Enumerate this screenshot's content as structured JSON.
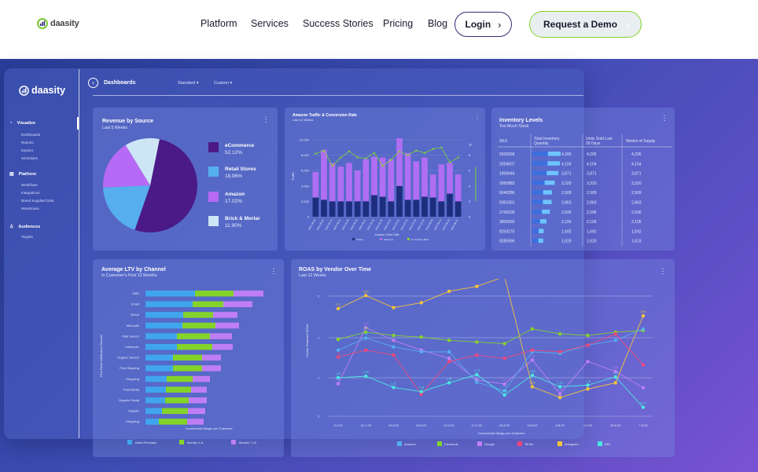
{
  "nav": {
    "logo_text": "daasity",
    "links": [
      "Platform",
      "Services",
      "Success Stories",
      "Pricing",
      "Blog"
    ],
    "login_label": "Login",
    "demo_label": "Request a Demo"
  },
  "dashboard": {
    "logo_text": "daasity",
    "title": "Dashboards",
    "dropdowns": [
      "Standard",
      "Custom"
    ],
    "sidebar": {
      "sections": [
        {
          "label": "Visualize",
          "icon": "chart-icon",
          "items": [
            "Dashboards",
            "Reports",
            "Explore",
            "Schedules"
          ]
        },
        {
          "label": "Platform",
          "icon": "grid-icon",
          "items": [
            "Workflows",
            "Integrations",
            "Brand Supplied Data",
            "Warehouse"
          ]
        },
        {
          "label": "Audiences",
          "icon": "people-icon",
          "items": [
            "Targets"
          ]
        }
      ]
    }
  },
  "revenue": {
    "title": "Revenue by Source",
    "subtitle": "Last 5 Weeks",
    "chart_data": {
      "type": "pie",
      "title": "Revenue by Source",
      "slices": [
        {
          "label": "eCommerce",
          "value": 52.12,
          "pct": "52.12%",
          "color": "#4b1a86"
        },
        {
          "label": "Retail Stores",
          "value": 18.96,
          "pct": "18.96%",
          "color": "#56aeee"
        },
        {
          "label": "Amazon",
          "value": 17.02,
          "pct": "17.02%",
          "color": "#b66af5"
        },
        {
          "label": "Brick & Mortar",
          "value": 11.9,
          "pct": "11.90%",
          "color": "#cde6f5"
        }
      ]
    }
  },
  "amazon": {
    "title": "Amazon Traffic & Conversion Rate",
    "subtitle": "Last 10 Weeks",
    "ylabel": "Traffic",
    "xlabel": "Amazon Order Date",
    "yticks": [
      "10,000",
      "8,000",
      "6,000",
      "4,000",
      "2,000",
      "0"
    ],
    "rticks": [
      "10",
      "8",
      "6",
      "4",
      "2",
      "0"
    ],
    "legend": [
      "Orders",
      "Sessions",
      "Conversion Rate"
    ],
    "colors": {
      "orders": "#1e2e7f",
      "sessions": "#b06ef3",
      "rate": "#7fd436"
    },
    "chart_data": {
      "type": "bar",
      "categories": [
        "2022-04-30",
        "2022-05-07",
        "2022-05-14",
        "2022-05-21",
        "2022-05-28",
        "2022-06-04",
        "2022-06-11",
        "2022-06-18",
        "2022-06-25",
        "2022-07-02",
        "2022-07-09",
        "2022-07-16",
        "2022-07-23",
        "2022-07-30",
        "2022-08-06",
        "2022-08-13",
        "2022-08-20",
        "2022-08-27"
      ],
      "series": [
        {
          "name": "Orders",
          "values": [
            2500,
            2200,
            2000,
            2000,
            2000,
            2000,
            2000,
            2800,
            2600,
            2000,
            4000,
            2200,
            2200,
            2600,
            2500,
            2000,
            3000,
            2000
          ]
        },
        {
          "name": "Sessions",
          "values": [
            3300,
            6500,
            5000,
            4500,
            5000,
            4000,
            5500,
            5000,
            5100,
            5500,
            6200,
            6100,
            5000,
            5100,
            3000,
            4800,
            4000,
            3500
          ]
        },
        {
          "name": "Conversion Rate",
          "values": [
            8.2,
            8.6,
            6.6,
            7.7,
            8.5,
            7.7,
            7.6,
            8.3,
            6.6,
            7.4,
            8.5,
            8.0,
            8.6,
            8.3,
            8.8,
            9.0,
            7.1,
            7.7
          ]
        }
      ],
      "ylim": [
        0,
        10000
      ]
    }
  },
  "inventory": {
    "title": "Inventory Levels",
    "subtitle": "Too Much Stock",
    "columns": [
      "SKU",
      "Total Inventory Quantity",
      "Units Sold Last 28 Days",
      "Weeks of Supply"
    ],
    "rows": [
      {
        "sku": "5930596",
        "qty": "4,205",
        "sold": "4,205",
        "weeks": "4,205",
        "v": 4205
      },
      {
        "sku": "2059607",
        "qty": "4,104",
        "sold": "4,104",
        "weeks": "4,104",
        "v": 4104
      },
      {
        "sku": "1906946",
        "qty": "3,871",
        "sold": "3,871",
        "weeks": "3,871",
        "v": 3871
      },
      {
        "sku": "2950883",
        "qty": "3,320",
        "sold": "3,320",
        "weeks": "3,320",
        "v": 3320
      },
      {
        "sku": "6040286",
        "qty": "2,909",
        "sold": "2,909",
        "weeks": "2,909",
        "v": 2909
      },
      {
        "sku": "5950301",
        "qty": "2,863",
        "sold": "2,863",
        "weeks": "2,863",
        "v": 2863
      },
      {
        "sku": "2749205",
        "qty": "2,596",
        "sold": "2,596",
        "weeks": "2,596",
        "v": 2596
      },
      {
        "sku": "3800602",
        "qty": "2,105",
        "sold": "2,105",
        "weeks": "2,105",
        "v": 2105
      },
      {
        "sku": "8259275",
        "qty": "1,692",
        "sold": "1,692",
        "weeks": "1,692",
        "v": 1692
      },
      {
        "sku": "9285996",
        "qty": "1,619",
        "sold": "1,619",
        "weeks": "1,619",
        "v": 1619
      }
    ]
  },
  "ltv": {
    "title": "Average LTV by Channel",
    "subtitle": "In Customer's First 12 Months",
    "ylabel": "First Order Attribution Channel",
    "xlabel": "Incremental Margin per Customer",
    "legend": [
      "Initial Purchase",
      "Months 1-6",
      "Months 7-12"
    ],
    "colors": [
      "#3fa6ee",
      "#84d32a",
      "#c07ef5"
    ],
    "chart_data": {
      "type": "bar",
      "categories": [
        "SMS",
        "Email",
        "Direct",
        "Microsite",
        "Paid Search",
        "Influencer",
        "Organic Search",
        "Free Shipping",
        "Shopping",
        "Paid Media",
        "Organic Social",
        "Organic",
        "Shopping"
      ],
      "series": [
        {
          "name": "Initial Purchase",
          "values": [
            63,
            60,
            48,
            47,
            40,
            40,
            35,
            35,
            27,
            26,
            25,
            21,
            17
          ]
        },
        {
          "name": "Months 1-6",
          "values": [
            49,
            39,
            38,
            42,
            42,
            45,
            37,
            37,
            33,
            32,
            30,
            33,
            36
          ]
        },
        {
          "name": "Months 7-12",
          "values": [
            38,
            37,
            31,
            30,
            28,
            26,
            24,
            24,
            22,
            20,
            23,
            22,
            21
          ]
        }
      ]
    }
  },
  "roas": {
    "title": "ROAS by Vendor Over Time",
    "subtitle": "Last 12 Weeks",
    "ylabel": "Vendor Reported ROAS",
    "xlabel": "Incremental Margin per Customer",
    "yticks": [
      "2",
      "1",
      "1",
      "2"
    ],
    "xticks": [
      "3.4.23",
      "10.1.22",
      "13.8.22",
      "20.8.22",
      "12.2.22",
      "17.2.22",
      "20.8.22",
      "18.8.22",
      "8.8.23",
      "1.9.23",
      "18.8.23",
      "7.8.23"
    ],
    "legend": [
      "Amazon",
      "Facebook",
      "Google",
      "TikTok",
      "Instagram",
      "DIH"
    ],
    "colors": [
      "#56aeee",
      "#84d32a",
      "#c07ef5",
      "#f0477a",
      "#f3c43a",
      "#49e7e0"
    ],
    "chart_data": {
      "type": "line",
      "x": [
        "3.4.23",
        "10.1.22",
        "13.8.22",
        "20.8.22",
        "12.2.22",
        "17.2.22",
        "20.8.22",
        "18.8.22",
        "8.8.23",
        "1.9.23",
        "18.8.23",
        "7.8.23"
      ],
      "series": [
        {
          "name": "Google",
          "labels": [
            "1.42",
            "3.14",
            "",
            "",
            "",
            "1.54",
            "1.41",
            "2.15",
            "1.11",
            "",
            "1.80",
            ""
          ],
          "values": [
            1.42,
            3.14,
            2.75,
            2.45,
            2.2,
            1.54,
            1.41,
            2.15,
            1.11,
            2.1,
            1.8,
            1.3
          ]
        },
        {
          "name": "Instagram",
          "labels": [
            "3.72",
            "4.12",
            "",
            "",
            "",
            "",
            "",
            "1.33",
            "",
            "",
            "",
            "3.50"
          ],
          "values": [
            3.72,
            4.12,
            3.75,
            3.9,
            4.25,
            4.4,
            4.7,
            1.33,
            1.0,
            1.26,
            1.45,
            3.5
          ]
        },
        {
          "name": "Facebook",
          "labels": [
            "",
            "3.00",
            "",
            "",
            "",
            "",
            "",
            "",
            "",
            "",
            "",
            ""
          ],
          "values": [
            2.78,
            3.0,
            2.9,
            2.85,
            2.75,
            2.7,
            2.65,
            3.1,
            2.95,
            2.9,
            3.0,
            3.05
          ]
        },
        {
          "name": "Amazon",
          "labels": [
            "",
            "2.82",
            "",
            "",
            "",
            "1.47",
            "1.21",
            "",
            "",
            "",
            "",
            ""
          ],
          "values": [
            2.45,
            2.82,
            2.55,
            2.4,
            2.4,
            1.47,
            1.21,
            2.4,
            2.35,
            2.6,
            2.75,
            3.1
          ]
        },
        {
          "name": "TikTok",
          "labels": [
            "2.24",
            "",
            "",
            "",
            "",
            "",
            "",
            "",
            "",
            "",
            "",
            ""
          ],
          "values": [
            2.24,
            2.45,
            2.3,
            1.1,
            2.1,
            2.3,
            2.2,
            2.45,
            2.4,
            2.6,
            2.95,
            2.0
          ]
        },
        {
          "name": "DIH",
          "labels": [
            "1.61",
            "1.65",
            "1.31",
            "1.18",
            "1.45",
            "1.70",
            "1.08",
            "1.68",
            "1.33",
            "1.38",
            "1.63",
            "0.70"
          ],
          "values": [
            1.61,
            1.65,
            1.31,
            1.18,
            1.45,
            1.7,
            1.08,
            1.68,
            1.33,
            1.38,
            1.63,
            0.7
          ]
        }
      ],
      "ylim": [
        0.5,
        4.2
      ]
    }
  }
}
